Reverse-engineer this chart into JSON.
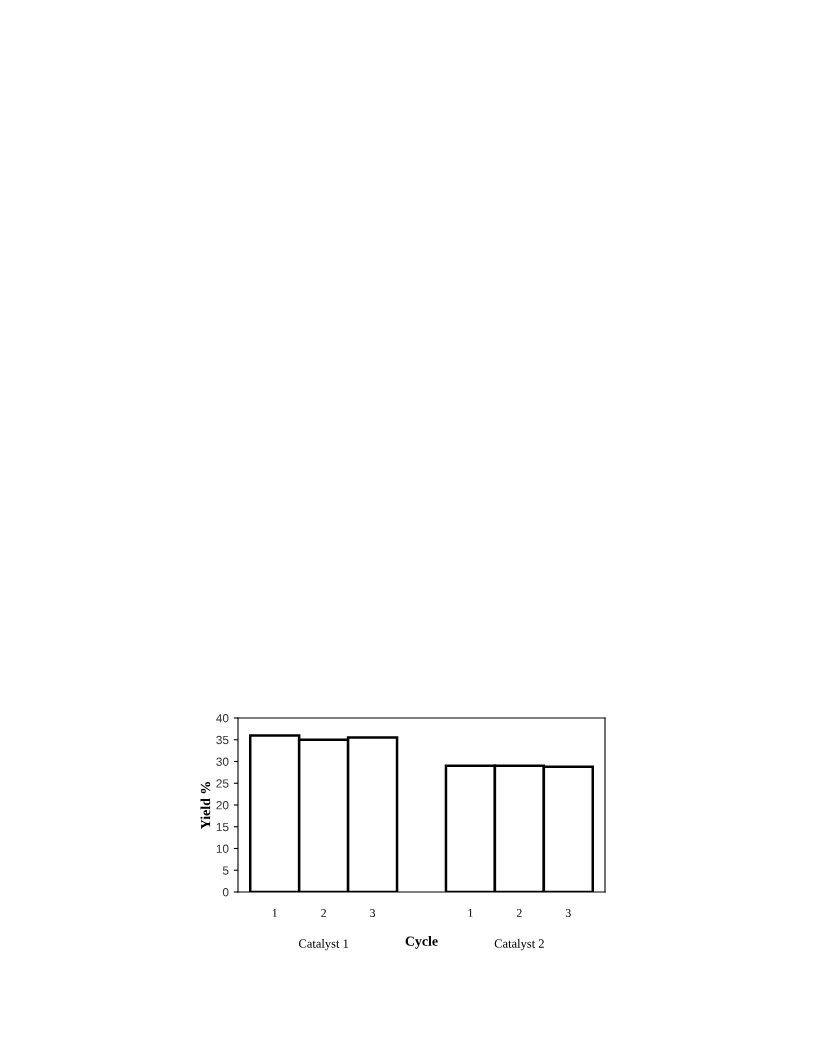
{
  "chart_data": {
    "type": "bar",
    "xlabel": "Cycle",
    "ylabel": "Yield %",
    "categories": [
      "1",
      "2",
      "3",
      null,
      "1",
      "2",
      "3"
    ],
    "series": [
      {
        "color": "#ffffff",
        "values": [
          36,
          35,
          35.5,
          null,
          29,
          29,
          28.8
        ]
      }
    ],
    "ylim": [
      0,
      40
    ],
    "yticks": [
      0,
      5,
      10,
      15,
      20,
      25,
      30,
      35,
      40
    ],
    "annotations": [
      "Catalyst 1",
      "Catalyst 2"
    ],
    "grid": false,
    "legend": false
  }
}
